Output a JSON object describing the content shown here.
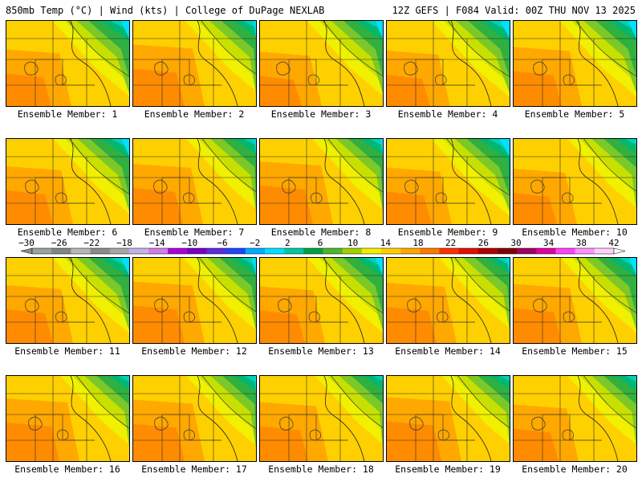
{
  "header": {
    "left_title": "850mb Temp (°C) | Wind (kts) | College of DuPage NEXLAB",
    "right_title": "12Z GEFS | F084 Valid: 00Z THU NOV 13 2025"
  },
  "colorbar": {
    "ticks": [
      "−30",
      "−26",
      "−22",
      "−18",
      "−14",
      "−10",
      "−6",
      "−2",
      "2",
      "6",
      "10",
      "14",
      "18",
      "22",
      "26",
      "30",
      "34",
      "38",
      "42"
    ],
    "colors": [
      "#9aa3a3",
      "#7d8787",
      "#b7b7b7",
      "#8a8a8a",
      "#a5a5a5",
      "#c7b0e8",
      "#d07ee8",
      "#b000d8",
      "#7800c0",
      "#5a2ee0",
      "#1e46ff",
      "#00aaff",
      "#00e0ff",
      "#00c8a0",
      "#00a040",
      "#4cb828",
      "#a0d000",
      "#f0f000",
      "#ffd000",
      "#ffa800",
      "#ff7800",
      "#ff3000",
      "#e01000",
      "#b00000",
      "#800000",
      "#a00060",
      "#e000a0",
      "#ff40ff",
      "#ff90ff",
      "#ffd0ff"
    ]
  },
  "panels": [
    {
      "label": "Ensemble Member: 1"
    },
    {
      "label": "Ensemble Member: 2"
    },
    {
      "label": "Ensemble Member: 3"
    },
    {
      "label": "Ensemble Member: 4"
    },
    {
      "label": "Ensemble Member: 5"
    },
    {
      "label": "Ensemble Member: 6"
    },
    {
      "label": "Ensemble Member: 7"
    },
    {
      "label": "Ensemble Member: 8"
    },
    {
      "label": "Ensemble Member: 9"
    },
    {
      "label": "Ensemble Member: 10"
    },
    {
      "label": "Ensemble Member: 11"
    },
    {
      "label": "Ensemble Member: 12"
    },
    {
      "label": "Ensemble Member: 13"
    },
    {
      "label": "Ensemble Member: 14"
    },
    {
      "label": "Ensemble Member: 15"
    },
    {
      "label": "Ensemble Member: 16"
    },
    {
      "label": "Ensemble Member: 17"
    },
    {
      "label": "Ensemble Member: 18"
    },
    {
      "label": "Ensemble Member: 19"
    },
    {
      "label": "Ensemble Member: 20"
    }
  ]
}
